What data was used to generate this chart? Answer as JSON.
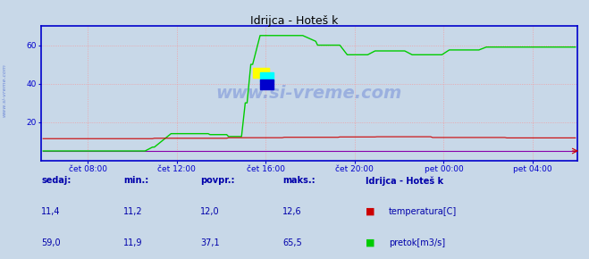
{
  "title_text": "Idrijca - Hoteš k",
  "bg_color": "#c8d8e8",
  "plot_bg_color": "#c8d8e8",
  "grid_color": "#ff8888",
  "axis_color": "#0000cc",
  "tick_color": "#0000cc",
  "xlabel_labels": [
    "čet 08:00",
    "čet 12:00",
    "čet 16:00",
    "čet 20:00",
    "pet 00:00",
    "pet 04:00"
  ],
  "ylim": [
    0,
    70
  ],
  "yticks": [
    20,
    40,
    60
  ],
  "temp_color": "#cc0000",
  "flow_color": "#00cc00",
  "height_color": "#8800aa",
  "watermark": "www.si-vreme.com",
  "legend_title": "Idrijca - Hoteš k",
  "legend_colors": [
    "#cc0000",
    "#00cc00"
  ],
  "stats_labels": [
    "sedaj:",
    "min.:",
    "povpr.:",
    "maks.:"
  ],
  "temp_stats": [
    "11,4",
    "11,2",
    "12,0",
    "12,6"
  ],
  "flow_stats": [
    "59,0",
    "11,9",
    "37,1",
    "65,5"
  ],
  "sidebar_text": "www.si-vreme.com",
  "n": 288,
  "xtick_positions": [
    24,
    72,
    120,
    168,
    216,
    264
  ]
}
